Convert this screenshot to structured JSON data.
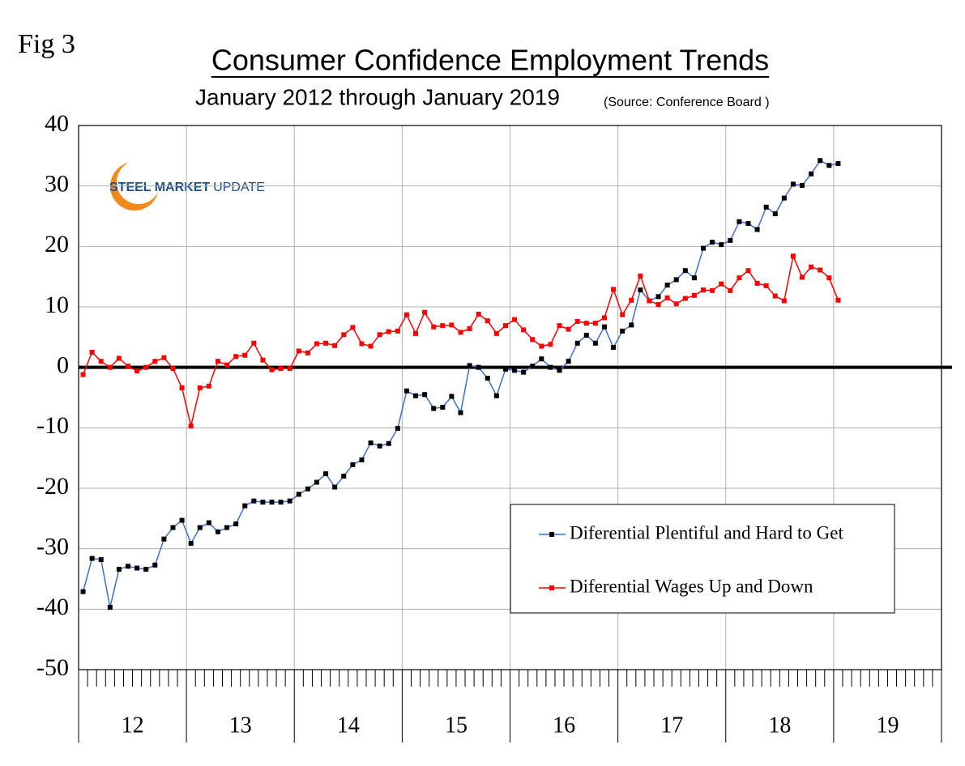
{
  "chart_data": {
    "type": "line",
    "figure_label": "Fig 3",
    "title": "Consumer Confidence Employment Trends",
    "subtitle": "January 2012 through January 2019",
    "source": "(Source: Conference Board )",
    "logo": {
      "bold": "STEEL MARKET",
      "light": "UPDATE"
    },
    "x_groups": [
      "12",
      "13",
      "14",
      "15",
      "16",
      "17",
      "18",
      "19"
    ],
    "categories": [
      null,
      null,
      null,
      null,
      null,
      null,
      null,
      null,
      null,
      null,
      null,
      null,
      null,
      null,
      null,
      null,
      null,
      null,
      null,
      null,
      null,
      null,
      null,
      null,
      null,
      null,
      null,
      null,
      null,
      null,
      null,
      null,
      null,
      null,
      null,
      null,
      null,
      null,
      null,
      null,
      null,
      null,
      null,
      null,
      null,
      null,
      null,
      null,
      null,
      null,
      null,
      null,
      null,
      null,
      null,
      null,
      null,
      null,
      null,
      null,
      null,
      null,
      null,
      null,
      null,
      null,
      null,
      null,
      null,
      null,
      null,
      null,
      null,
      null,
      null,
      null,
      null,
      null,
      null,
      null,
      null,
      null,
      null,
      null,
      null,
      null,
      null,
      null,
      null,
      null,
      null,
      null,
      null,
      null,
      null,
      null
    ],
    "ylim": [
      -50,
      40
    ],
    "yticks": [
      -50,
      -40,
      -30,
      -20,
      -10,
      0,
      10,
      20,
      30,
      40
    ],
    "grid": true,
    "zero_line": true,
    "legend": "lower right",
    "series": [
      {
        "name": "Diferential Plentiful and Hard to Get",
        "color": "#3b6fd8",
        "marker_color": "#000000",
        "values": [
          -37.1,
          -31.6,
          -31.8,
          -39.7,
          -33.4,
          -32.9,
          -33.2,
          -33.4,
          -32.7,
          -28.4,
          -26.5,
          -25.3,
          -29.1,
          -26.5,
          -25.7,
          -27.2,
          -26.5,
          -25.9,
          -22.9,
          -22.1,
          -22.3,
          -22.3,
          -22.3,
          -22.1,
          -21.0,
          -20.1,
          -19.0,
          -17.6,
          -19.8,
          -18.0,
          -16.1,
          -15.3,
          -12.5,
          -13.0,
          -12.6,
          -10.1,
          -3.9,
          -4.7,
          -4.5,
          -6.8,
          -6.6,
          -4.8,
          -7.5,
          0.3,
          0.0,
          -1.8,
          -4.7,
          -0.3,
          -0.5,
          -0.8,
          0.2,
          1.4,
          0.0,
          -0.5,
          1.0,
          4.0,
          5.3,
          4.0,
          6.7,
          3.3,
          6.0,
          7.0,
          12.8,
          11.0,
          11.7,
          13.6,
          14.5,
          16.0,
          14.8,
          19.7,
          20.7,
          20.3,
          21.0,
          24.1,
          23.8,
          22.8,
          26.5,
          25.4,
          28.0,
          30.3,
          30.1,
          32.0,
          34.2,
          33.4,
          33.7,
          null,
          null,
          null,
          null,
          null,
          null,
          null,
          null,
          null,
          null,
          null
        ]
      },
      {
        "name": "Diferential Wages Up and Down",
        "color": "#ff0000",
        "marker_color": "#ff0000",
        "values": [
          -1.2,
          2.5,
          1.0,
          0.0,
          1.5,
          0.2,
          -0.6,
          0.0,
          1.0,
          1.6,
          -0.2,
          -3.4,
          -9.7,
          -3.4,
          -3.1,
          1.0,
          0.4,
          1.8,
          2.0,
          4.0,
          1.2,
          -0.4,
          -0.2,
          -0.2,
          2.7,
          2.4,
          3.9,
          4.0,
          3.6,
          5.4,
          6.6,
          3.9,
          3.5,
          5.4,
          5.9,
          6.0,
          8.7,
          5.6,
          9.1,
          6.7,
          6.9,
          7.0,
          5.8,
          6.4,
          8.8,
          7.7,
          5.6,
          6.9,
          7.9,
          6.2,
          4.6,
          3.5,
          3.8,
          6.9,
          6.3,
          7.6,
          7.3,
          7.3,
          8.2,
          12.9,
          8.7,
          11.1,
          15.1,
          11.0,
          10.4,
          11.5,
          10.5,
          11.4,
          11.9,
          12.8,
          12.7,
          13.8,
          12.7,
          14.8,
          16.0,
          13.9,
          13.5,
          11.8,
          11.0,
          18.4,
          14.9,
          16.6,
          16.1,
          14.8,
          11.1,
          null,
          null,
          null,
          null,
          null,
          null,
          null,
          null,
          null,
          null,
          null
        ]
      }
    ]
  }
}
